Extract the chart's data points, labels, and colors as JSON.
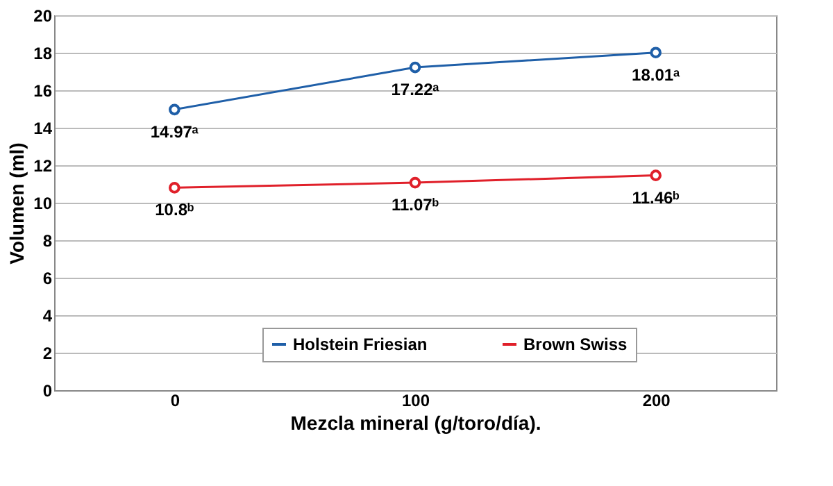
{
  "chart_data": {
    "type": "line",
    "xlabel": "Mezcla mineral (g/toro/día).",
    "ylabel": "Volumen (ml)",
    "categories": [
      "0",
      "100",
      "200"
    ],
    "series": [
      {
        "name": "Holstein Friesian",
        "color": "#1f5fa8",
        "values": [
          14.97,
          17.22,
          18.01
        ],
        "value_labels": [
          "14.97ᵃ",
          "17.22ᵃ",
          "18.01ᵃ"
        ]
      },
      {
        "name": "Brown Swiss",
        "color": "#e0202a",
        "values": [
          10.8,
          11.07,
          11.46
        ],
        "value_labels": [
          "10.8ᵇ",
          "11.07ᵇ",
          "11.46ᵇ"
        ]
      }
    ],
    "ylim": [
      0,
      20
    ],
    "yticks": [
      0,
      2,
      4,
      6,
      8,
      10,
      12,
      14,
      16,
      18,
      20
    ],
    "grid": "y",
    "legend": "bottom",
    "marker": "circle",
    "line_style": "solid"
  }
}
